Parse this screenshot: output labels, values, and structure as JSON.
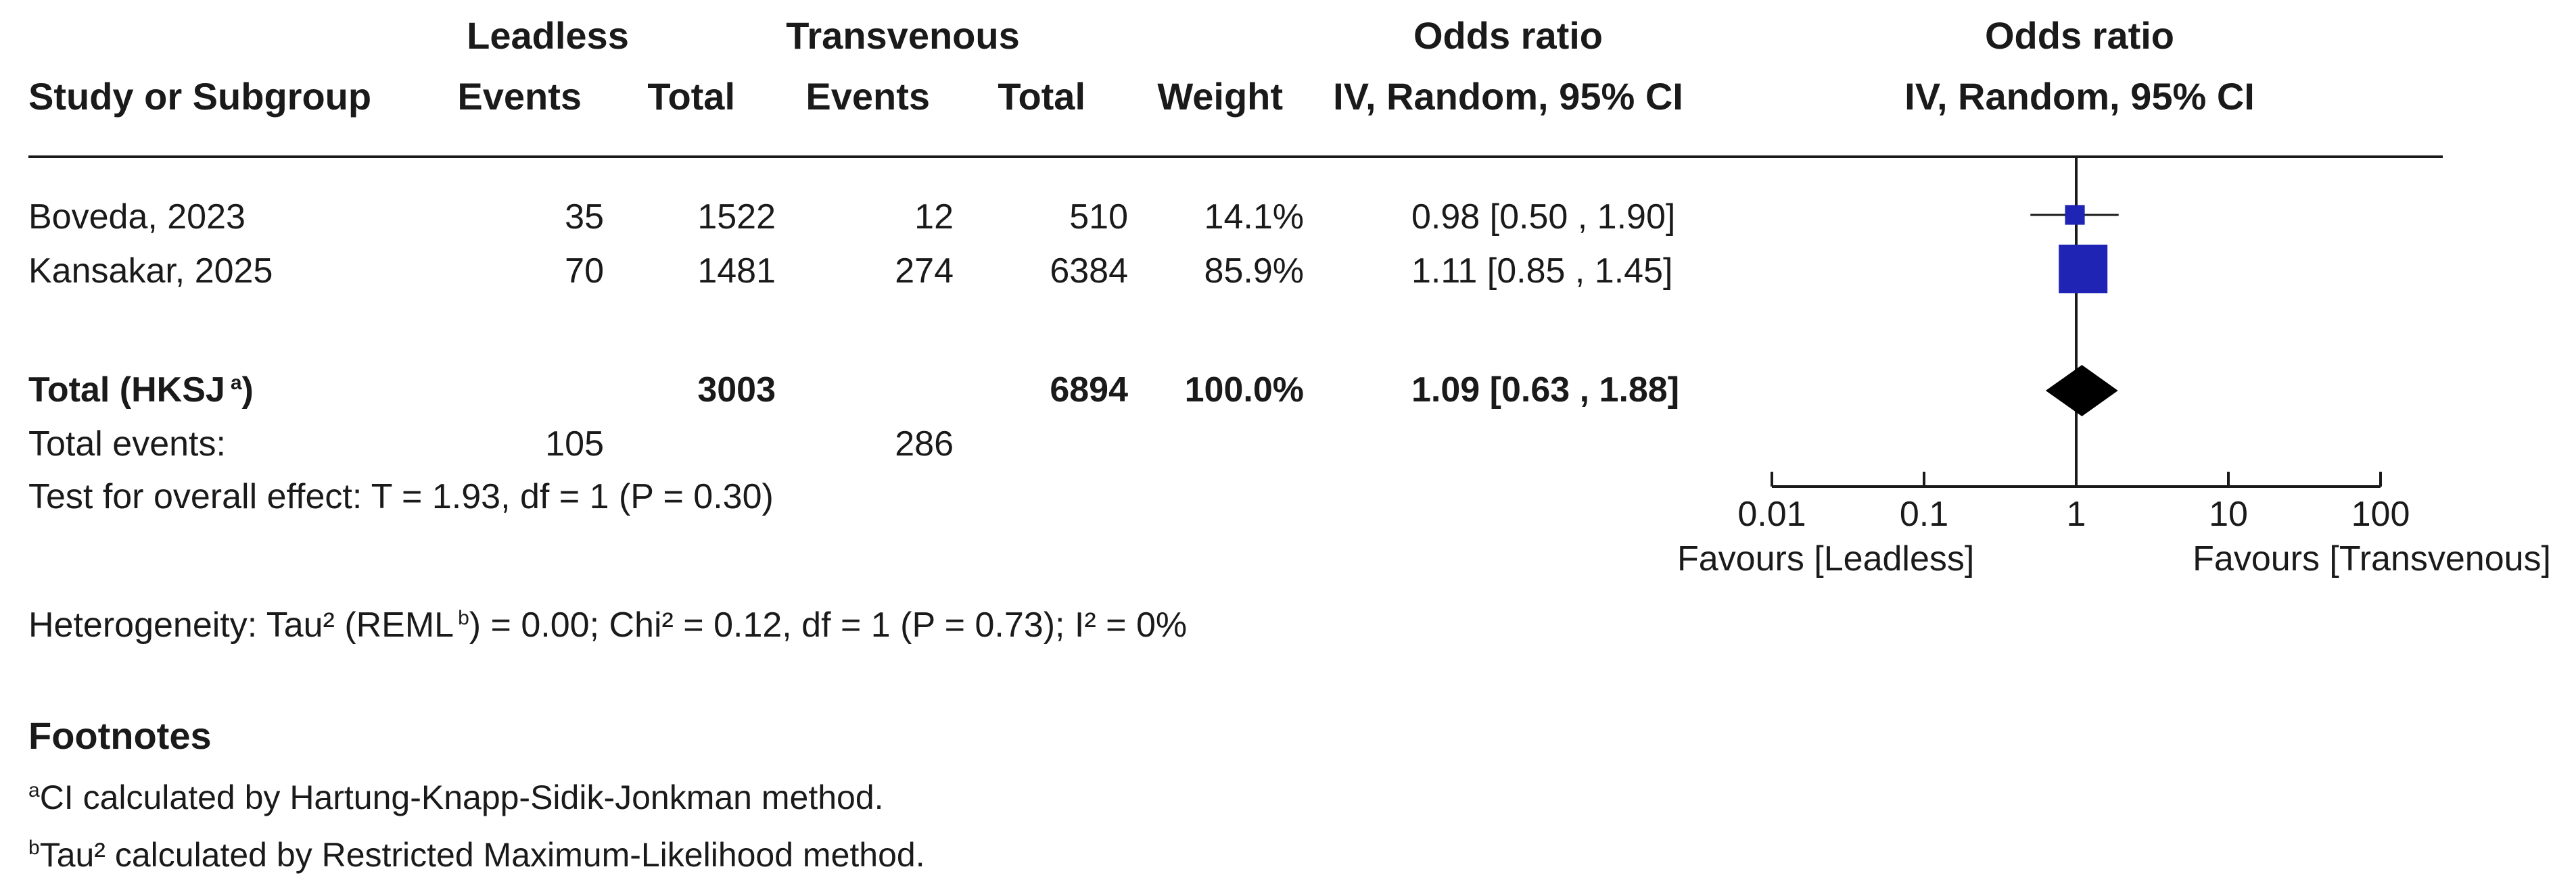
{
  "headers": {
    "leadless": "Leadless",
    "transvenous": "Transvenous",
    "study": "Study or Subgroup",
    "events": "Events",
    "total": "Total",
    "weight": "Weight",
    "or_title": "Odds ratio",
    "or_method": "IV, Random, 95% CI",
    "plot_title": "Odds ratio",
    "plot_method": "IV, Random, 95% CI"
  },
  "studies": [
    {
      "name": "Boveda, 2023",
      "lead_events": "35",
      "lead_total": "1522",
      "trans_events": "12",
      "trans_total": "510",
      "weight": "14.1%",
      "ci_text": "0.98 [0.50 , 1.90]"
    },
    {
      "name": "Kansakar, 2025",
      "lead_events": "70",
      "lead_total": "1481",
      "trans_events": "274",
      "trans_total": "6384",
      "weight": "85.9%",
      "ci_text": "1.11 [0.85 , 1.45]"
    }
  ],
  "total": {
    "label": "Total (HKSJ",
    "label_sup": "a",
    "label_close": ")",
    "lead_total": "3003",
    "trans_total": "6894",
    "weight": "100.0%",
    "ci_text": "1.09 [0.63 , 1.88]",
    "events_label": "Total events:",
    "lead_events": "105",
    "trans_events": "286"
  },
  "overall_effect": "Test for overall effect: T = 1.93, df = 1 (P = 0.30)",
  "heterogeneity": {
    "prefix": "Heterogeneity: Tau² (REML",
    "sup": "b",
    "suffix": ") = 0.00; Chi² = 0.12, df = 1 (P = 0.73); I² = 0%"
  },
  "footnotes": {
    "title": "Footnotes",
    "notes": [
      {
        "mark": "a",
        "text": "CI calculated by Hartung-Knapp-Sidik-Jonkman method."
      },
      {
        "mark": "b",
        "text": "Tau² calculated by Restricted Maximum-Likelihood method."
      }
    ]
  },
  "axis": {
    "ticks": [
      "0.01",
      "0.1",
      "1",
      "10",
      "100"
    ],
    "favours_left": "Favours [Leadless]",
    "favours_right": "Favours [Transvenous]"
  },
  "chart_data": {
    "type": "forest",
    "scale": "log",
    "xlim": [
      0.01,
      100
    ],
    "null_value": 1,
    "colors": {
      "study_marker": "#1f24b4",
      "summary_marker": "#000000"
    },
    "studies": [
      {
        "name": "Boveda, 2023",
        "or": 0.98,
        "lower": 0.5,
        "upper": 1.9,
        "weight": 14.1
      },
      {
        "name": "Kansakar, 2025",
        "or": 1.11,
        "lower": 0.85,
        "upper": 1.45,
        "weight": 85.9
      }
    ],
    "summary": {
      "name": "Total (HKSJ)",
      "or": 1.09,
      "lower": 0.63,
      "upper": 1.88,
      "weight": 100.0
    }
  }
}
